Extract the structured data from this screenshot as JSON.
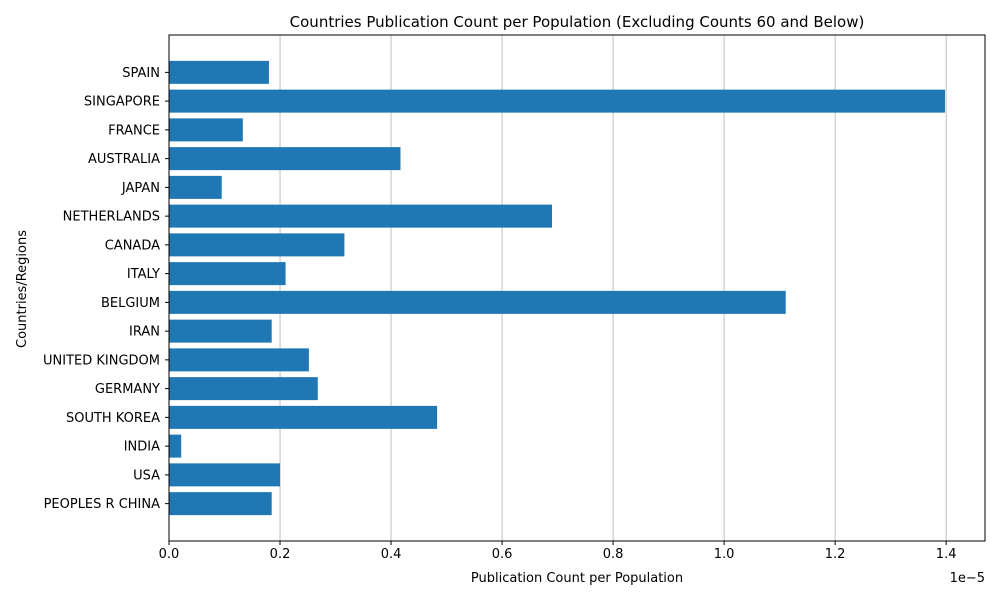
{
  "chart_data": {
    "type": "bar",
    "orientation": "horizontal",
    "title": "Countries Publication Count per Population (Excluding Counts 60 and Below)",
    "xlabel": "Publication Count per Population",
    "ylabel": "Countries/Regions",
    "x_offset_label": "1e−5",
    "xlim": [
      0,
      1.47
    ],
    "x_ticks": [
      0.0,
      0.2,
      0.4,
      0.6,
      0.8,
      1.0,
      1.2,
      1.4
    ],
    "x_tick_labels": [
      "0.0",
      "0.2",
      "0.4",
      "0.6",
      "0.8",
      "1.0",
      "1.2",
      "1.4"
    ],
    "grid": "vertical",
    "bar_color": "#1f77b4",
    "categories": [
      "PEOPLES R CHINA",
      "USA",
      "INDIA",
      "SOUTH KOREA",
      "GERMANY",
      "UNITED KINGDOM",
      "IRAN",
      "BELGIUM",
      "ITALY",
      "CANADA",
      "NETHERLANDS",
      "JAPAN",
      "AUSTRALIA",
      "FRANCE",
      "SINGAPORE",
      "SPAIN"
    ],
    "values": [
      0.185,
      0.2,
      0.022,
      0.483,
      0.268,
      0.252,
      0.185,
      1.111,
      0.21,
      0.316,
      0.69,
      0.095,
      0.417,
      0.133,
      1.398,
      0.18
    ]
  }
}
